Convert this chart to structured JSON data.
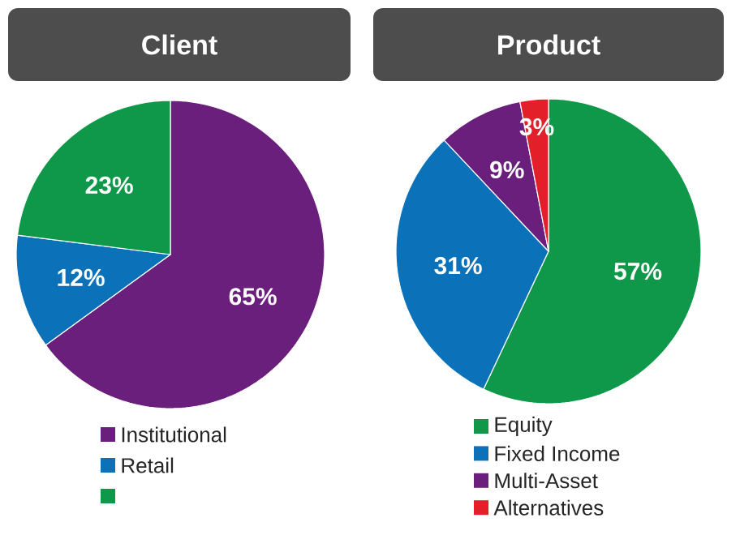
{
  "chart_data": [
    {
      "type": "pie",
      "title": "Client",
      "categories": [
        "Institutional",
        "Retail",
        null
      ],
      "values": [
        65,
        12,
        23
      ],
      "colors": [
        "#6b1f7c",
        "#0b72b9",
        "#10984a"
      ],
      "value_labels": [
        "65%",
        "12%",
        "23%"
      ],
      "legend": "bottom"
    },
    {
      "type": "pie",
      "title": "Product",
      "categories": [
        "Equity",
        "Fixed Income",
        "Multi-Asset",
        "Alternatives"
      ],
      "values": [
        57,
        31,
        9,
        3
      ],
      "colors": [
        "#10984a",
        "#0b72b9",
        "#6b1f7c",
        "#e3202a"
      ],
      "value_labels": [
        "57%",
        "31%",
        "9%",
        "3%"
      ],
      "legend": "bottom"
    }
  ]
}
